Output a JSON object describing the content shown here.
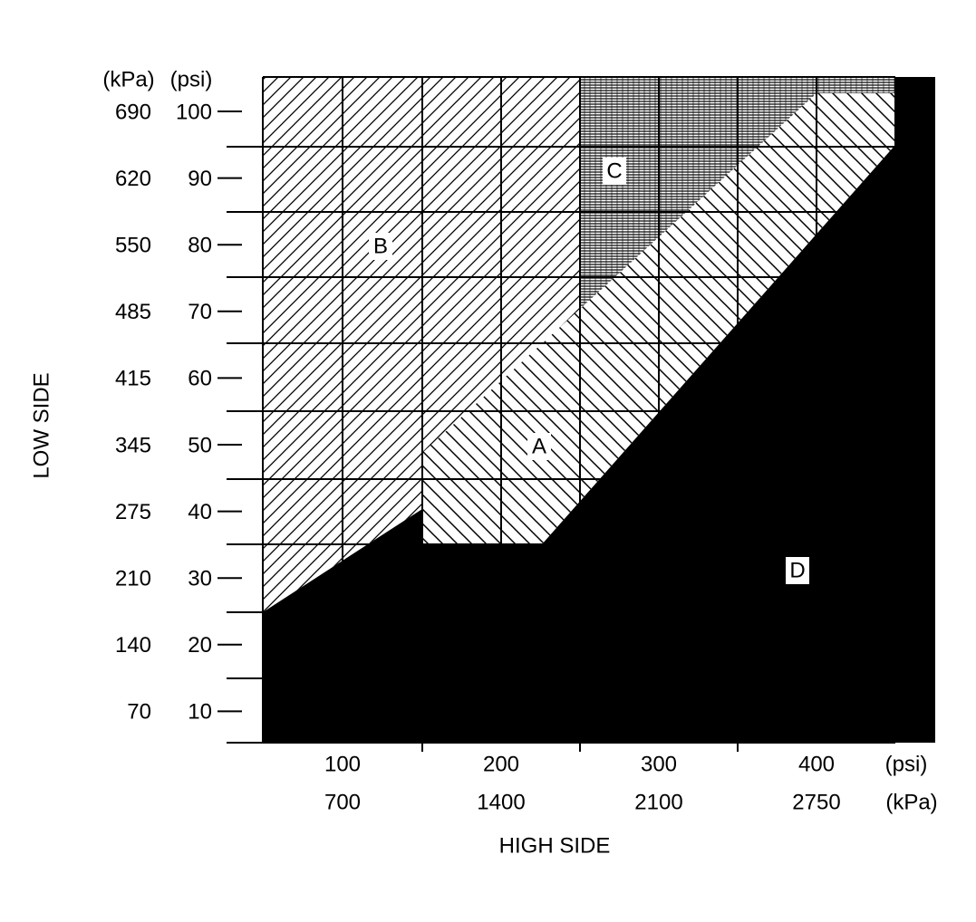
{
  "axes": {
    "y_title": "LOW SIDE",
    "x_title": "HIGH SIDE",
    "y_unit_kpa": "(kPa)",
    "y_unit_psi": "(psi)",
    "y_labels": [
      {
        "kpa": "690",
        "psi": "100"
      },
      {
        "kpa": "620",
        "psi": "90"
      },
      {
        "kpa": "550",
        "psi": "80"
      },
      {
        "kpa": "485",
        "psi": "70"
      },
      {
        "kpa": "415",
        "psi": "60"
      },
      {
        "kpa": "345",
        "psi": "50"
      },
      {
        "kpa": "275",
        "psi": "40"
      },
      {
        "kpa": "210",
        "psi": "30"
      },
      {
        "kpa": "140",
        "psi": "20"
      },
      {
        "kpa": "70",
        "psi": "10"
      }
    ],
    "x_labels": [
      {
        "psi": "100",
        "kpa": "700"
      },
      {
        "psi": "200",
        "kpa": "1400"
      },
      {
        "psi": "300",
        "kpa": "2100"
      },
      {
        "psi": "400",
        "kpa": "2750"
      }
    ],
    "x_unit_psi": "(psi)",
    "x_unit_kpa": "(kPa)"
  },
  "regions": [
    "A",
    "B",
    "C",
    "D"
  ]
}
